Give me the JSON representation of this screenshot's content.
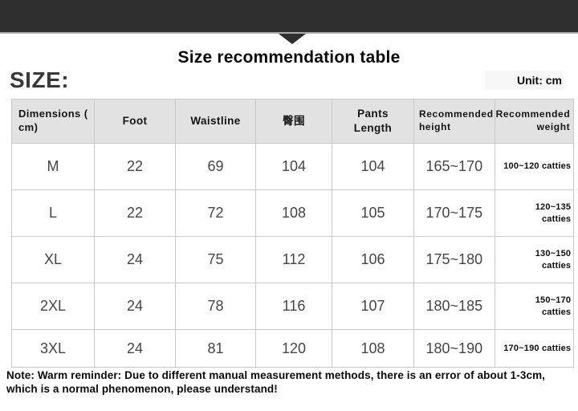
{
  "colors": {
    "banner_bg": "#2f2f30",
    "header_row_bg": "#e2e2e2",
    "table_border": "#c9c9c9",
    "cell_text": "#454545",
    "heading_text": "#0a0a0a"
  },
  "header": {
    "title": "Size recommendation table",
    "size_label": "SIZE:",
    "unit_label": "Unit: cm"
  },
  "table": {
    "columns": [
      {
        "id": "size",
        "label": "Dimensions (\ncm)"
      },
      {
        "id": "foot",
        "label": "Foot"
      },
      {
        "id": "waistline",
        "label": "Waistline"
      },
      {
        "id": "hip",
        "label": "臀围"
      },
      {
        "id": "pants_length",
        "label": "Pants\nLength"
      },
      {
        "id": "rec_height",
        "label": "Recommended\nheight"
      },
      {
        "id": "rec_weight",
        "label": "Recommended\nweight"
      }
    ],
    "rows": [
      {
        "size": "M",
        "foot": "22",
        "waistline": "69",
        "hip": "104",
        "pants_length": "104",
        "rec_height": "165~170",
        "rec_weight": "100~120 catties"
      },
      {
        "size": "L",
        "foot": "22",
        "waistline": "72",
        "hip": "108",
        "pants_length": "105",
        "rec_height": "170~175",
        "rec_weight": "120~135\ncatties"
      },
      {
        "size": "XL",
        "foot": "24",
        "waistline": "75",
        "hip": "112",
        "pants_length": "106",
        "rec_height": "175~180",
        "rec_weight": "130~150\ncatties"
      },
      {
        "size": "2XL",
        "foot": "24",
        "waistline": "78",
        "hip": "116",
        "pants_length": "107",
        "rec_height": "180~185",
        "rec_weight": "150~170\ncatties"
      },
      {
        "size": "3XL",
        "foot": "24",
        "waistline": "81",
        "hip": "120",
        "pants_length": "108",
        "rec_height": "180~190",
        "rec_weight": "170~190 catties"
      }
    ]
  },
  "note": "Note: Warm reminder: Due to different manual measurement methods, there is an error of about 1-3cm,\nwhich is a normal phenomenon, please understand!"
}
